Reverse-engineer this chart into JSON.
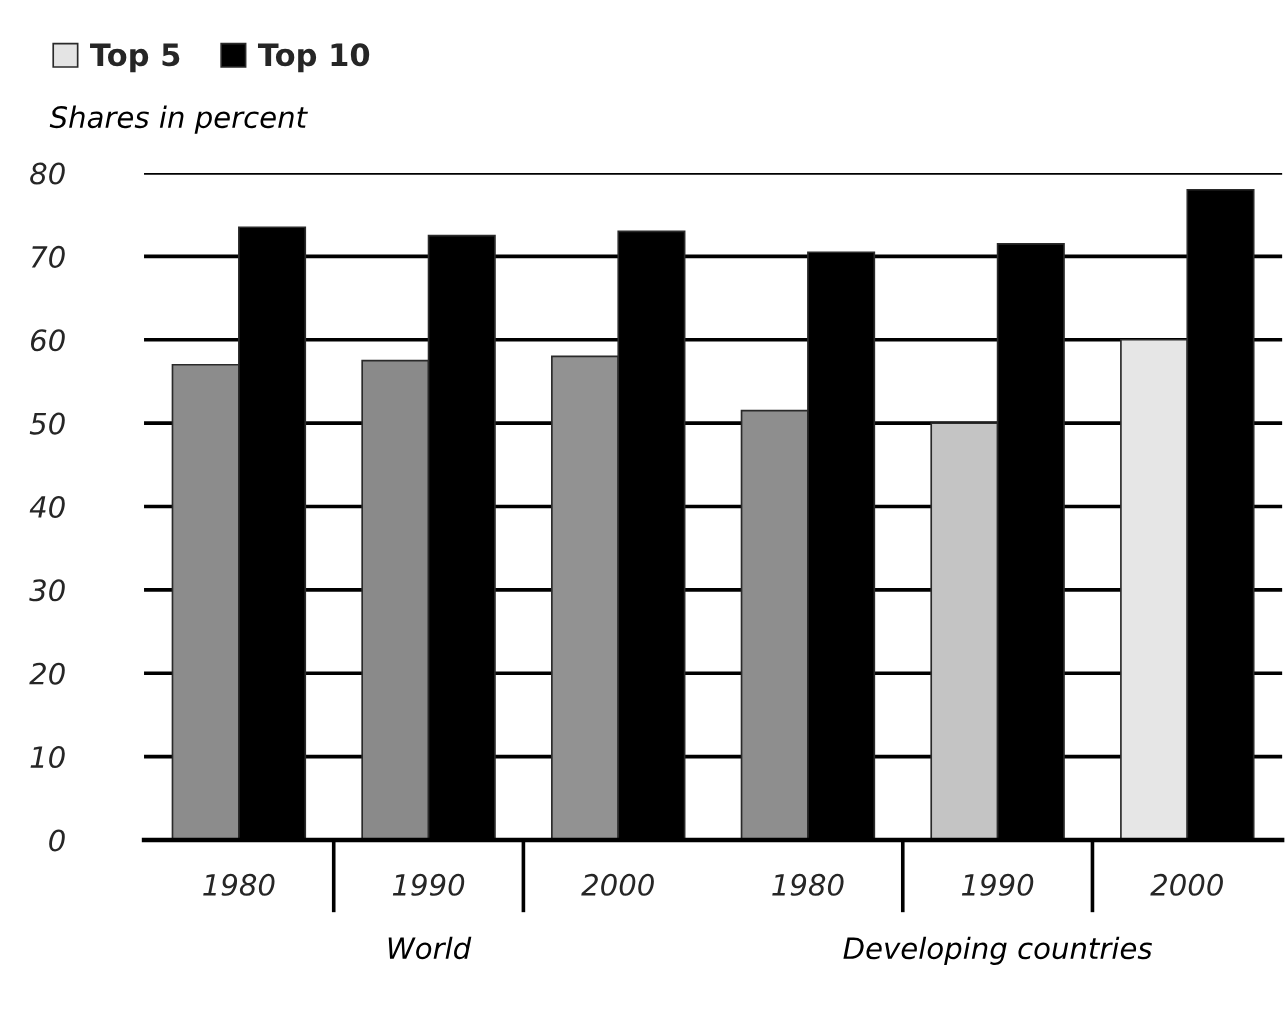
{
  "chart_data": {
    "type": "bar",
    "ylabel": "Shares in percent",
    "categories": [
      "1980",
      "1990",
      "2000",
      "1980",
      "1990",
      "2000"
    ],
    "series": [
      {
        "name": "Top 5",
        "color": "#e4e4e4",
        "colors": [
          "#8c8c8c",
          "#8a8a8a",
          "#929292",
          "#8e8e8e",
          "#c4c4c4",
          "#e6e6e6"
        ],
        "values": [
          57,
          57.5,
          58,
          51.5,
          50,
          60
        ]
      },
      {
        "name": "Top 10",
        "color": "#000000",
        "values": [
          73.5,
          72.5,
          73,
          70.5,
          71.5,
          78
        ]
      }
    ],
    "ylim": [
      0,
      80
    ],
    "yticks": [
      0,
      10,
      20,
      30,
      40,
      50,
      60,
      70,
      80
    ],
    "grid": "y",
    "legend": "top left",
    "annotations": [
      "World",
      "Developing countries"
    ]
  }
}
